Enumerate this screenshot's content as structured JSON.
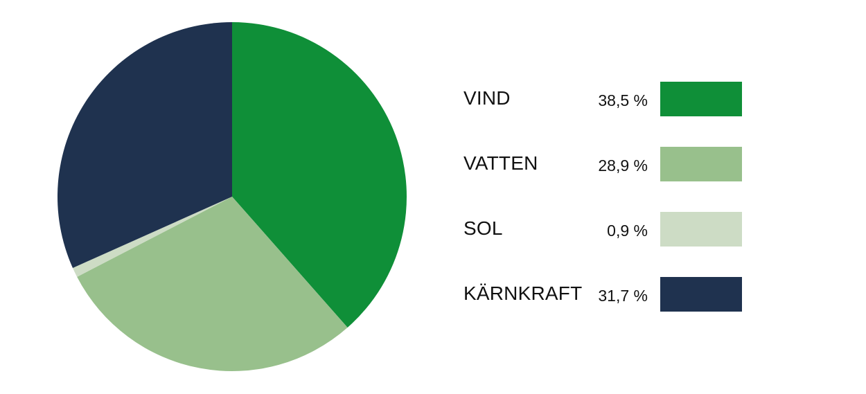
{
  "chart_data": {
    "type": "pie",
    "series": [
      {
        "name": "",
        "values": [
          38.5,
          28.9,
          0.9,
          31.7
        ]
      }
    ],
    "categories": [
      "VIND",
      "VATTEN",
      "SOL",
      "KÄRNKRAFT"
    ],
    "value_labels": [
      "38,5 %",
      "28,9 %",
      "0,9 %",
      "31,7 %"
    ],
    "colors": [
      "#0f8f38",
      "#98c08c",
      "#cddcc5",
      "#1f324f"
    ],
    "start_angle_deg": 0,
    "direction": "clockwise",
    "legend_position": "right"
  }
}
